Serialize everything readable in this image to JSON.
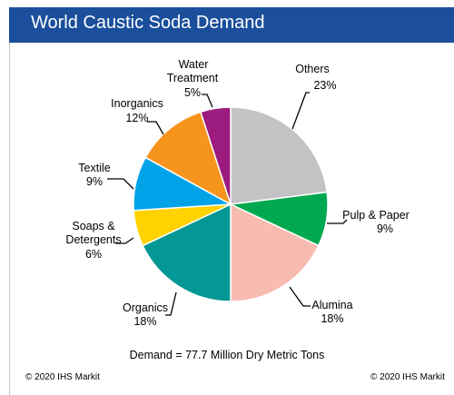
{
  "chart_data": {
    "type": "pie",
    "title": "World Caustic Soda Demand",
    "start_angle_deg": 0,
    "direction": "clockwise",
    "slices": [
      {
        "label": "Others",
        "value": 23,
        "pct_label": "23%",
        "color": "#c3c3c5"
      },
      {
        "label": "Pulp & Paper",
        "value": 9,
        "pct_label": "9%",
        "color": "#00a84f"
      },
      {
        "label": "Alumina",
        "value": 18,
        "pct_label": "18%",
        "color": "#f7bbb1"
      },
      {
        "label": "Organics",
        "value": 18,
        "pct_label": "18%",
        "color": "#039895"
      },
      {
        "label": "Soaps & Detergents",
        "value": 6,
        "pct_label": "6%",
        "color": "#ffd200"
      },
      {
        "label": "Textile",
        "value": 9,
        "pct_label": "9%",
        "color": "#00a3e8"
      },
      {
        "label": "Inorganics",
        "value": 12,
        "pct_label": "12%",
        "color": "#f7941d"
      },
      {
        "label": "Water Treatment",
        "value": 5,
        "pct_label": "5%",
        "color": "#9b1b7e"
      }
    ],
    "annotation": "Demand = 77.7 Million Dry Metric Tons"
  },
  "copyright_left": "© 2020 IHS Markit",
  "copyright_right": "© 2020 IHS Markit"
}
